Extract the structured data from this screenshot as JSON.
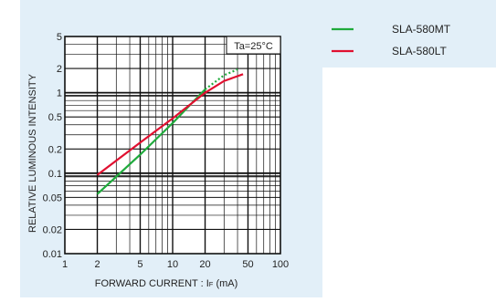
{
  "chart_data": {
    "type": "line",
    "xlabel": "FORWARD  CURRENT : I",
    "xlabel_sub": "F",
    "xlabel_unit": " (mA)",
    "ylabel": "RELATIVE  LUMINOUS  INTENSITY",
    "annotation": "Ta=25°C",
    "xscale": "log",
    "yscale": "log",
    "xlim": [
      1,
      100
    ],
    "ylim": [
      0.01,
      5
    ],
    "x_ticks": [
      1,
      2,
      5,
      10,
      20,
      50,
      100
    ],
    "x_tick_labels": [
      "1",
      "2",
      "5",
      "10",
      "20",
      "50",
      "100"
    ],
    "y_ticks": [
      0.01,
      0.02,
      0.05,
      0.1,
      0.2,
      0.5,
      1,
      2,
      5
    ],
    "y_tick_labels": [
      "0.01",
      "0.02",
      "0.05",
      "0.1",
      "0.2",
      "0.5",
      "1",
      "2",
      "5"
    ],
    "grid": true,
    "series": [
      {
        "name": "SLA-580MT",
        "color": "#1faa3c",
        "x": [
          2,
          5,
          10,
          20,
          30,
          40
        ],
        "y": [
          0.055,
          0.17,
          0.42,
          1.1,
          1.65,
          1.95
        ],
        "dotted_from_x": 25
      },
      {
        "name": "SLA-580LT",
        "color": "#e01030",
        "x": [
          2,
          5,
          10,
          20,
          30,
          45
        ],
        "y": [
          0.095,
          0.24,
          0.48,
          1.0,
          1.4,
          1.7
        ]
      }
    ]
  }
}
